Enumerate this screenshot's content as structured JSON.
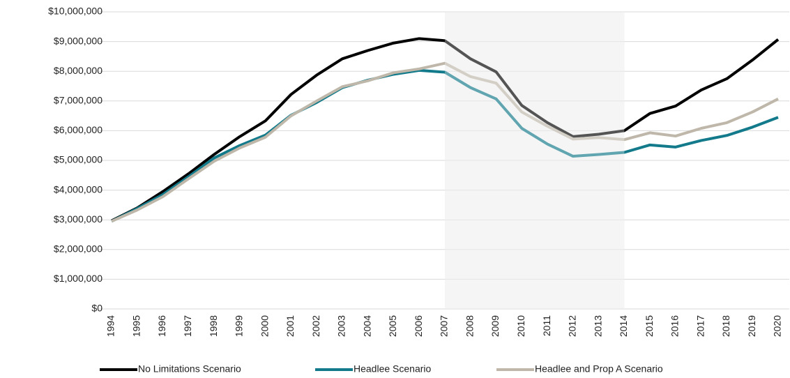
{
  "chart_data": {
    "type": "line",
    "categories": [
      "1994",
      "1995",
      "1996",
      "1997",
      "1998",
      "1999",
      "2000",
      "2001",
      "2002",
      "2003",
      "2004",
      "2005",
      "2006",
      "2007",
      "2008",
      "2009",
      "2010",
      "2011",
      "2012",
      "2013",
      "2014",
      "2015",
      "2016",
      "2017",
      "2018",
      "2019",
      "2020"
    ],
    "series": [
      {
        "name": "No Limitations Scenario",
        "color": "#000000",
        "values": [
          2970000,
          3400000,
          3950000,
          4550000,
          5200000,
          5800000,
          6330000,
          7220000,
          7870000,
          8420000,
          8700000,
          8950000,
          9100000,
          9030000,
          8420000,
          7980000,
          6850000,
          6270000,
          5800000,
          5880000,
          6000000,
          6580000,
          6830000,
          7370000,
          7750000,
          8380000,
          9070000
        ]
      },
      {
        "name": "Headlee Scenario",
        "color": "#127a8a",
        "values": [
          2950000,
          3380000,
          3850000,
          4450000,
          5080000,
          5500000,
          5850000,
          6520000,
          6950000,
          7450000,
          7700000,
          7900000,
          8030000,
          7970000,
          7450000,
          7070000,
          6080000,
          5550000,
          5140000,
          5200000,
          5270000,
          5520000,
          5450000,
          5670000,
          5840000,
          6120000,
          6450000
        ]
      },
      {
        "name": "Headlee and Prop A Scenario",
        "color": "#bfb8aa",
        "values": [
          2950000,
          3330000,
          3780000,
          4380000,
          4970000,
          5420000,
          5780000,
          6500000,
          7000000,
          7480000,
          7680000,
          7950000,
          8080000,
          8270000,
          7820000,
          7600000,
          6630000,
          6150000,
          5720000,
          5770000,
          5700000,
          5930000,
          5820000,
          6080000,
          6270000,
          6630000,
          7070000
        ]
      }
    ],
    "highlight": [
      "2007",
      "2014"
    ],
    "ylim": [
      0,
      10000000
    ],
    "yticks": [
      {
        "value": 0,
        "label": "$0"
      },
      {
        "value": 1000000,
        "label": "$1,000,000"
      },
      {
        "value": 2000000,
        "label": "$2,000,000"
      },
      {
        "value": 3000000,
        "label": "$3,000,000"
      },
      {
        "value": 4000000,
        "label": "$4,000,000"
      },
      {
        "value": 5000000,
        "label": "$5,000,000"
      },
      {
        "value": 6000000,
        "label": "$6,000,000"
      },
      {
        "value": 7000000,
        "label": "$7,000,000"
      },
      {
        "value": 8000000,
        "label": "$8,000,000"
      },
      {
        "value": 9000000,
        "label": "$9,000,000"
      },
      {
        "value": 10000000,
        "label": "$10,000,000"
      }
    ],
    "grid": true,
    "legend": "bottom"
  }
}
